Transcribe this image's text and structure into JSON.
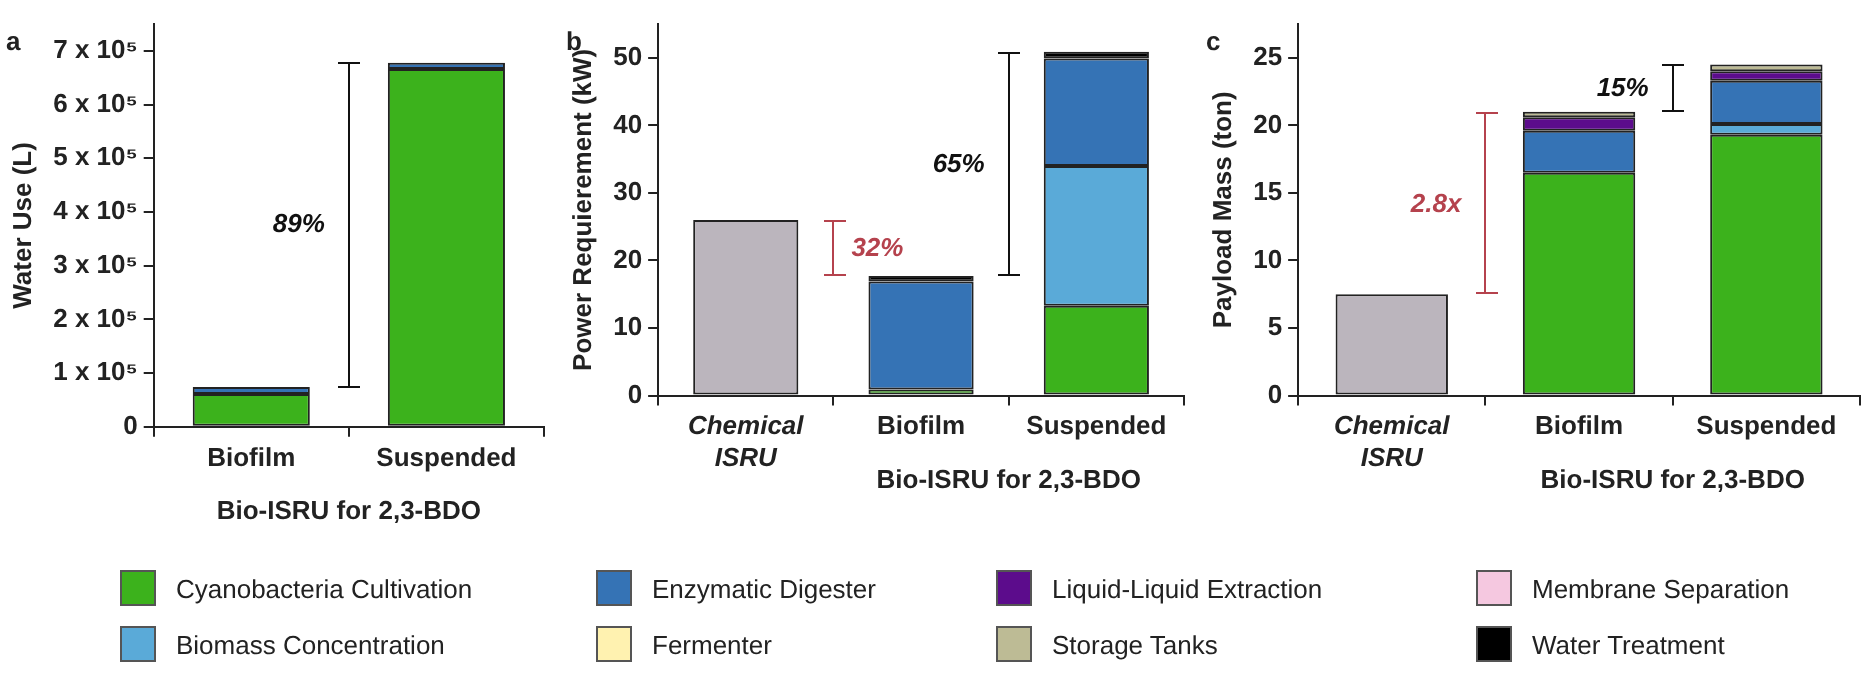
{
  "chart_data": [
    {
      "type": "bar",
      "title": "a",
      "ylabel": "Water Use (L)",
      "xlabel": "Bio-ISRU for 2,3-BDO",
      "stacked": true,
      "categories": [
        "Biofilm",
        "Suspended"
      ],
      "ylim": [
        0,
        750000
      ],
      "yticks": [
        0,
        {
          "value": 100000,
          "label": "1 x 10⁵"
        },
        {
          "value": 200000,
          "label": "2 x 10⁵"
        },
        {
          "value": 300000,
          "label": "3 x 10⁵"
        },
        {
          "value": 400000,
          "label": "4 x 10⁵"
        },
        {
          "value": 500000,
          "label": "5 x 10⁵"
        },
        {
          "value": 600000,
          "label": "6 x 10⁵"
        },
        {
          "value": 700000,
          "label": "7 x 10⁵"
        }
      ],
      "legend": "bottom",
      "series": [
        {
          "name": "Cyanobacteria Cultivation",
          "color": "#3cb21c",
          "values": [
            61000,
            666000
          ]
        },
        {
          "name": "Biomass Concentration",
          "color": "#5aaad8",
          "values": [
            null,
            null
          ]
        },
        {
          "name": "Enzymatic Digester",
          "color": "#3573b5",
          "values": [
            13000,
            12000
          ]
        },
        {
          "name": "Fermenter",
          "color": "#fff2b0",
          "values": [
            null,
            null
          ]
        },
        {
          "name": "Liquid-Liquid Extraction",
          "color": "#5c0c8c",
          "values": [
            null,
            null
          ]
        },
        {
          "name": "Storage Tanks",
          "color": "#bdbb95",
          "values": [
            null,
            null
          ]
        },
        {
          "name": "Membrane Separation",
          "color": "#f5c8e0",
          "values": [
            null,
            null
          ]
        },
        {
          "name": "Water Treatment",
          "color": "#000000",
          "values": [
            null,
            null
          ]
        }
      ],
      "annotations": [
        "89%"
      ]
    },
    {
      "type": "bar",
      "title": "b",
      "ylabel": "Power Requierement (kW)",
      "xlabel": "Bio-ISRU for 2,3-BDO",
      "stacked": true,
      "categories": [
        "Chemical ISRU",
        "Biofilm",
        "Suspended"
      ],
      "ylim": [
        0,
        55
      ],
      "yticks": [
        0,
        10,
        20,
        30,
        40,
        50
      ],
      "series": [
        {
          "color": "#bbb5bd",
          "values": [
            26,
            null,
            null
          ]
        },
        {
          "color": "#3cb21c",
          "values": [
            null,
            0.9,
            13.3
          ]
        },
        {
          "color": "#5aaad8",
          "values": [
            null,
            null,
            20.7
          ]
        },
        {
          "color": "#3573b5",
          "values": [
            null,
            16.0,
            15.9
          ]
        },
        {
          "color": "#000000",
          "values": [
            null,
            0.8,
            1.0
          ]
        }
      ],
      "annotations": [
        "32%",
        "65%"
      ]
    },
    {
      "type": "bar",
      "title": "c",
      "ylabel": "Payload Mass (ton)",
      "xlabel": "Bio-ISRU for 2,3-BDO",
      "stacked": true,
      "categories": [
        "Chemical ISRU",
        "Biofilm",
        "Suspended"
      ],
      "ylim": [
        0,
        27.5
      ],
      "yticks": [
        0,
        5,
        10,
        15,
        20,
        25
      ],
      "series": [
        {
          "color": "#bbb5bd",
          "values": [
            7.5,
            null,
            null
          ]
        },
        {
          "color": "#3cb21c",
          "values": [
            null,
            16.5,
            19.3
          ]
        },
        {
          "color": "#5aaad8",
          "values": [
            null,
            null,
            0.8
          ]
        },
        {
          "color": "#3573b5",
          "values": [
            null,
            3.1,
            3.2
          ]
        },
        {
          "color": "#5c0c8c",
          "values": [
            null,
            1.0,
            0.7
          ]
        },
        {
          "color": "#bdbb95",
          "values": [
            null,
            0.4,
            0.5
          ]
        }
      ],
      "annotations": [
        "2.8x",
        "15%"
      ]
    }
  ]
}
